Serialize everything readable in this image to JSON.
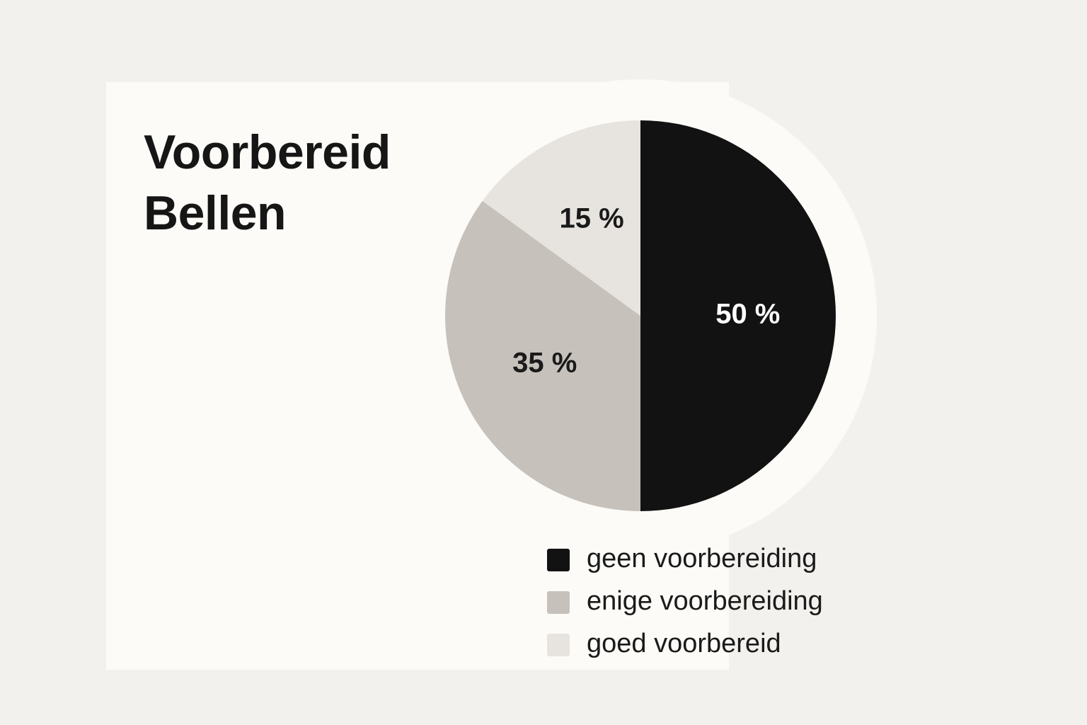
{
  "chart_data": {
    "type": "pie",
    "title": "Voorbereid Bellen",
    "categories": [
      "geen voorbereiding",
      "enige voorbereiding",
      "goed voorbereid"
    ],
    "values": [
      50,
      35,
      15
    ],
    "value_labels": [
      "50 %",
      "35 %",
      "15 %"
    ],
    "colors": [
      "#121212",
      "#c6c2bb",
      "#e7e4df"
    ]
  }
}
